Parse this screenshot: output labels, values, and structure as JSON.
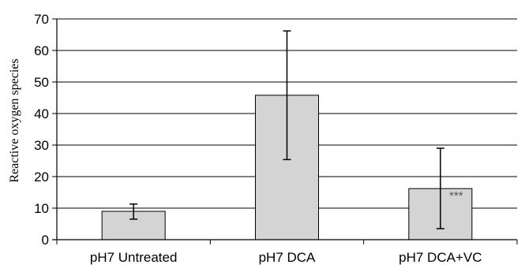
{
  "chart_data": {
    "type": "bar",
    "title": "",
    "xlabel": "",
    "ylabel": "Reactive oxygen species",
    "ylim": [
      0,
      70
    ],
    "yticks": [
      0,
      10,
      20,
      30,
      40,
      50,
      60,
      70
    ],
    "grid": true,
    "categories": [
      "pH7 Untreated",
      "pH7 DCA",
      "pH7 DCA+VC"
    ],
    "values": [
      9,
      45.8,
      16.2
    ],
    "error_bars": [
      {
        "low": 6.5,
        "high": 11.3
      },
      {
        "low": 25.4,
        "high": 66.2
      },
      {
        "low": 3.5,
        "high": 29
      }
    ],
    "annotations": [
      {
        "category": "pH7 DCA+VC",
        "text": "***"
      }
    ],
    "colors": {
      "bar_fill": "#d4d4d4",
      "bar_stroke": "#000000",
      "grid": "#000000",
      "annotation": "#555555"
    }
  }
}
